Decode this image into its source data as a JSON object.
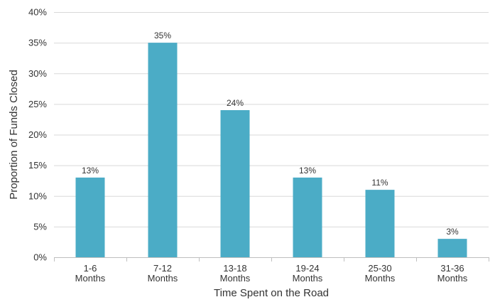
{
  "chart_data": {
    "type": "bar",
    "categories": [
      [
        "1-6",
        "Months"
      ],
      [
        "7-12",
        "Months"
      ],
      [
        "13-18",
        "Months"
      ],
      [
        "19-24",
        "Months"
      ],
      [
        "25-30",
        "Months"
      ],
      [
        "31-36",
        "Months"
      ]
    ],
    "values": [
      13,
      35,
      24,
      13,
      11,
      3
    ],
    "data_labels": [
      "13%",
      "35%",
      "24%",
      "13%",
      "11%",
      "3%"
    ],
    "title": "",
    "xlabel": "Time Spent on the Road",
    "ylabel": "Proportion of Funds Closed",
    "ylim": [
      0,
      40
    ],
    "yticks": [
      0,
      5,
      10,
      15,
      20,
      25,
      30,
      35,
      40
    ],
    "ytick_labels": [
      "0%",
      "5%",
      "10%",
      "15%",
      "20%",
      "25%",
      "30%",
      "35%",
      "40%"
    ],
    "grid": true,
    "bar_color": "#4bacc6"
  }
}
